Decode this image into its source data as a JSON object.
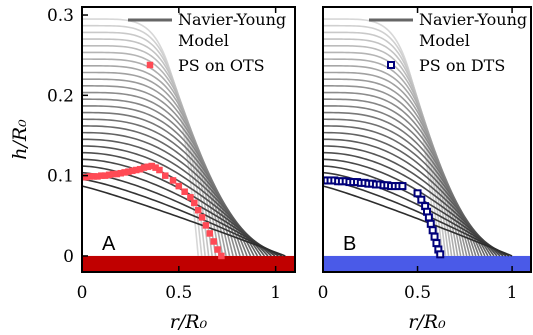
{
  "chart_data": [
    {
      "type": "line",
      "panel_label": "A",
      "xlabel": "r/R₀",
      "ylabel": "h/R₀",
      "xlim": [
        0,
        1.1
      ],
      "ylim": [
        -0.02,
        0.31
      ],
      "x_ticks": [
        "0",
        "0.5",
        "1"
      ],
      "y_ticks": [
        "0",
        "0.1",
        "0.2",
        "0.3"
      ],
      "legend": {
        "placement": "top-right",
        "entries": [
          "Navier-Young Model",
          "PS on OTS"
        ]
      },
      "legend_lines": {
        "model_line1": "Navier-Young",
        "model_line2": "Model",
        "data": "PS on OTS"
      },
      "substrate_color": "#c00000",
      "marker_color": "#ff4a55",
      "model": {
        "name": "Navier-Young Model",
        "profile_count": 26,
        "h0_start": 0.295,
        "h0_end": 0.087,
        "r_contact_start": 0.6,
        "r_contact_end": 1.05
      },
      "series": [
        {
          "name": "PS on OTS",
          "x": [
            0.0,
            0.02,
            0.04,
            0.06,
            0.08,
            0.1,
            0.12,
            0.14,
            0.16,
            0.18,
            0.2,
            0.22,
            0.24,
            0.26,
            0.28,
            0.3,
            0.32,
            0.34,
            0.36,
            0.38,
            0.4,
            0.43,
            0.47,
            0.5,
            0.53,
            0.56,
            0.58,
            0.6,
            0.62,
            0.64,
            0.66,
            0.68,
            0.7,
            0.72
          ],
          "y": [
            0.098,
            0.098,
            0.099,
            0.099,
            0.099,
            0.1,
            0.1,
            0.101,
            0.102,
            0.102,
            0.103,
            0.104,
            0.105,
            0.106,
            0.107,
            0.108,
            0.11,
            0.111,
            0.112,
            0.11,
            0.107,
            0.1,
            0.094,
            0.087,
            0.08,
            0.073,
            0.066,
            0.057,
            0.048,
            0.038,
            0.028,
            0.018,
            0.008,
            0.0
          ]
        }
      ]
    },
    {
      "type": "line",
      "panel_label": "B",
      "xlabel": "r/R₀",
      "ylabel": "",
      "xlim": [
        0,
        1.1
      ],
      "ylim": [
        -0.02,
        0.31
      ],
      "x_ticks": [
        "0",
        "0.5",
        "1"
      ],
      "y_ticks": [],
      "legend": {
        "placement": "top-right",
        "entries": [
          "Navier-Young Model",
          "PS on DTS"
        ]
      },
      "legend_lines": {
        "model_line1": "Navier-Young",
        "model_line2": "Model",
        "data": "PS on DTS"
      },
      "substrate_color": "#4a5ae8",
      "marker_color": "#00007a",
      "model": {
        "name": "Navier-Young Model",
        "profile_count": 26,
        "h0_start": 0.295,
        "h0_end": 0.087,
        "r_contact_start": 0.6,
        "r_contact_end": 1.0
      },
      "series": [
        {
          "name": "PS on DTS",
          "x": [
            0.0,
            0.02,
            0.04,
            0.06,
            0.08,
            0.1,
            0.12,
            0.14,
            0.16,
            0.18,
            0.2,
            0.22,
            0.24,
            0.26,
            0.28,
            0.3,
            0.32,
            0.34,
            0.36,
            0.38,
            0.4,
            0.42,
            0.5,
            0.52,
            0.54,
            0.55,
            0.56,
            0.57,
            0.58,
            0.59,
            0.6,
            0.61,
            0.62
          ],
          "y": [
            0.094,
            0.094,
            0.094,
            0.094,
            0.093,
            0.093,
            0.093,
            0.092,
            0.092,
            0.092,
            0.091,
            0.091,
            0.09,
            0.09,
            0.089,
            0.089,
            0.088,
            0.088,
            0.087,
            0.087,
            0.087,
            0.087,
            0.078,
            0.07,
            0.062,
            0.055,
            0.048,
            0.04,
            0.032,
            0.024,
            0.016,
            0.008,
            0.002
          ]
        }
      ]
    }
  ]
}
